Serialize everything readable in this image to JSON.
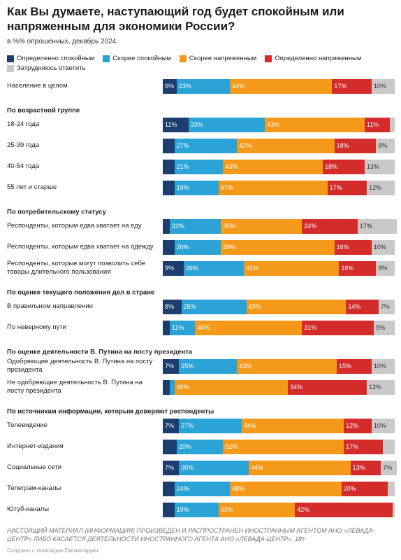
{
  "chart_data": {
    "type": "bar",
    "stacked": true,
    "orientation": "horizontal",
    "title": "Как Вы думаете, наступающий год будет спокойным или напряженным для экономики России?",
    "subtitle": "в %% опрошенных, декабрь 2024",
    "categories": [
      "Население в целом",
      "18-24 года",
      "25-39 года",
      "40-54 года",
      "55 лет и старше",
      "Респонденты, которым едва хватает на еду",
      "Респонденты, которым едва хватает на одежду",
      "Респонденты, которые могут позволить себе товары длительного пользования",
      "В правильном направлении",
      "По неверному пути",
      "Одобряющие деятельность В. Путина на посту президента",
      "Не одобряющие деятельность В. Путина на посту президента",
      "Телевидение",
      "Интернет-издания",
      "Социальные сети",
      "Телеграм-каналы",
      "Ютуб-каналы"
    ],
    "group_headers": [
      {
        "title": "По возрастной группе",
        "before": 1
      },
      {
        "title": "По потребительскому статусу",
        "before": 5
      },
      {
        "title": "По оценке текущего положения дел в стране",
        "before": 8
      },
      {
        "title": "По оценке деятельности В. Путина на посту президента",
        "before": 10
      },
      {
        "title": "По источникам информации, которым доверяют респонденты",
        "before": 12
      }
    ],
    "series": [
      {
        "name": "Определенно спокойным",
        "color": "#1c3d6e",
        "values": [
          6,
          11,
          5,
          5,
          5,
          3,
          5,
          9,
          8,
          3,
          7,
          3,
          7,
          6,
          7,
          5,
          5
        ],
        "value_labels": [
          "6%",
          "11%",
          null,
          null,
          null,
          null,
          null,
          "9%",
          "8%",
          null,
          "7%",
          null,
          "7%",
          null,
          "7%",
          null,
          null
        ]
      },
      {
        "name": "Скорее спокойным",
        "color": "#2ba3d6",
        "values": [
          23,
          33,
          27,
          21,
          19,
          22,
          20,
          26,
          28,
          11,
          25,
          2,
          27,
          20,
          30,
          24,
          19
        ],
        "value_labels": [
          "23%",
          "33%",
          "27%",
          "21%",
          "19%",
          "22%",
          "20%",
          "26%",
          "28%",
          "11%",
          "25%",
          null,
          "27%",
          "20%",
          "30%",
          "24%",
          "19%"
        ]
      },
      {
        "name": "Скорее напряженным",
        "color": "#f5991a",
        "values": [
          44,
          43,
          42,
          43,
          47,
          35,
          49,
          41,
          43,
          46,
          43,
          49,
          44,
          52,
          44,
          48,
          33
        ],
        "value_labels": [
          "44%",
          "43%",
          "42%",
          "43%",
          "47%",
          "35%",
          "49%",
          "41%",
          "43%",
          "46%",
          "43%",
          "49%",
          "44%",
          "52%",
          "44%",
          "48%",
          "33%"
        ]
      },
      {
        "name": "Определенно напряженным",
        "color": "#d42b2b",
        "values": [
          17,
          11,
          18,
          18,
          17,
          24,
          16,
          16,
          14,
          31,
          15,
          34,
          12,
          17,
          13,
          20,
          42
        ],
        "value_labels": [
          "17%",
          "11%",
          "18%",
          "18%",
          "17%",
          "24%",
          "16%",
          "16%",
          "14%",
          "31%",
          "15%",
          "34%",
          "12%",
          "17%",
          "13%",
          "20%",
          "42%"
        ]
      },
      {
        "name": "Затрудняюсь ответить",
        "color": "#c9c9c9",
        "values": [
          10,
          2,
          8,
          13,
          12,
          17,
          10,
          8,
          7,
          9,
          10,
          12,
          10,
          5,
          7,
          3,
          1
        ],
        "value_labels": [
          "10%",
          null,
          "8%",
          "13%",
          "12%",
          "17%",
          "10%",
          "8%",
          "7%",
          "9%",
          "10%",
          "12%",
          "10%",
          null,
          "7%",
          null,
          null
        ]
      }
    ],
    "footnote": "НАСТОЯЩИЙ МАТЕРИАЛ (ИНФОРМАЦИЯ) ПРОИЗВЕДЕН И РАСПРОСТРАНЕН ИНОСТРАННЫМ АГЕНТОМ АНО «ЛЕВАДА-ЦЕНТР» ЛИБО КАСАЕТСЯ ДЕЯТЕЛЬНОСТИ ИНОСТРАННОГО АГЕНТА АНО «ЛЕВАДА-ЦЕНТР». 18+",
    "credit": "Создано с помощью Datawrapper"
  }
}
